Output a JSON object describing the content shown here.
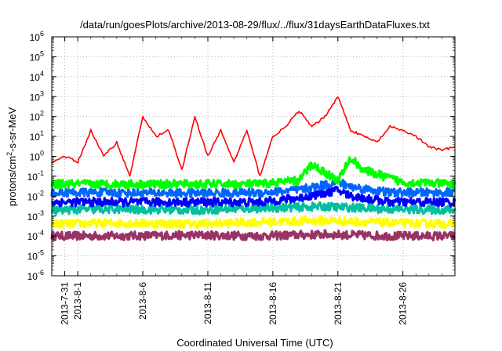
{
  "chart_data": {
    "type": "line",
    "title": "/data/run/goesPlots/archive/2013-08-29/flux/../flux/31daysEarthDataFluxes.txt",
    "xlabel": "Coordinated Universal Time (UTC)",
    "ylabel": "protons/cm²-s-sr-MeV",
    "ylabel_parts": {
      "pre": "protons/cm",
      "sup": "2",
      "post": "-s-sr-MeV"
    },
    "x_range": [
      "2013-07-30",
      "2013-08-30"
    ],
    "x_ticks": [
      "2013-7-31",
      "2013-8-1",
      "2013-8-6",
      "2013-8-11",
      "2013-8-16",
      "2013-8-21",
      "2013-8-26"
    ],
    "y_scale": "log",
    "y_range": [
      1e-06,
      1000000.0
    ],
    "y_ticks": [
      {
        "base": "10",
        "exp": "-6"
      },
      {
        "base": "10",
        "exp": "-5"
      },
      {
        "base": "10",
        "exp": "-4"
      },
      {
        "base": "10",
        "exp": "-3"
      },
      {
        "base": "10",
        "exp": "-2"
      },
      {
        "base": "10",
        "exp": "-1"
      },
      {
        "base": "10",
        "exp": "0"
      },
      {
        "base": "10",
        "exp": "1"
      },
      {
        "base": "10",
        "exp": "2"
      },
      {
        "base": "10",
        "exp": "3"
      },
      {
        "base": "10",
        "exp": "4"
      },
      {
        "base": "10",
        "exp": "5"
      },
      {
        "base": "10",
        "exp": "6"
      }
    ],
    "grid": true,
    "series": [
      {
        "color": "#993366",
        "x": [
          "2013-07-30",
          "2013-08-04",
          "2013-08-10",
          "2013-08-15",
          "2013-08-20",
          "2013-08-25",
          "2013-08-30"
        ],
        "y": [
          0.0001,
          0.0001,
          0.00011,
          0.0001,
          0.00012,
          0.0001,
          0.0001
        ]
      },
      {
        "color": "#ffff00",
        "x": [
          "2013-07-30",
          "2013-08-04",
          "2013-08-10",
          "2013-08-15",
          "2013-08-20",
          "2013-08-25",
          "2013-08-30"
        ],
        "y": [
          0.0004,
          0.00045,
          0.0004,
          0.0005,
          0.0006,
          0.00045,
          0.0004
        ]
      },
      {
        "color": "#00c0a0",
        "x": [
          "2013-07-30",
          "2013-08-04",
          "2013-08-10",
          "2013-08-15",
          "2013-08-20",
          "2013-08-25",
          "2013-08-30"
        ],
        "y": [
          0.002,
          0.0022,
          0.002,
          0.0025,
          0.003,
          0.0022,
          0.002
        ]
      },
      {
        "color": "#0000ff",
        "x": [
          "2013-07-30",
          "2013-08-04",
          "2013-08-10",
          "2013-08-15",
          "2013-08-18",
          "2013-08-21",
          "2013-08-22",
          "2013-08-25",
          "2013-08-30"
        ],
        "y": [
          0.005,
          0.005,
          0.005,
          0.005,
          0.008,
          0.02,
          0.01,
          0.005,
          0.005
        ]
      },
      {
        "color": "#0066ff",
        "x": [
          "2013-07-30",
          "2013-08-04",
          "2013-08-10",
          "2013-08-15",
          "2013-08-18",
          "2013-08-21",
          "2013-08-22",
          "2013-08-25",
          "2013-08-30"
        ],
        "y": [
          0.015,
          0.015,
          0.014,
          0.015,
          0.02,
          0.05,
          0.03,
          0.015,
          0.015
        ]
      },
      {
        "color": "#00ff00",
        "x": [
          "2013-07-30",
          "2013-08-04",
          "2013-08-10",
          "2013-08-15",
          "2013-08-18",
          "2013-08-19",
          "2013-08-21",
          "2013-08-22",
          "2013-08-23",
          "2013-08-26",
          "2013-08-30"
        ],
        "y": [
          0.04,
          0.04,
          0.04,
          0.04,
          0.06,
          0.4,
          0.06,
          0.8,
          0.2,
          0.05,
          0.04
        ]
      },
      {
        "color": "#ff0000",
        "x": [
          "2013-07-30",
          "2013-07-31",
          "2013-08-01",
          "2013-08-02",
          "2013-08-03",
          "2013-08-04",
          "2013-08-05",
          "2013-08-06",
          "2013-08-07",
          "2013-08-08",
          "2013-08-09",
          "2013-08-10",
          "2013-08-11",
          "2013-08-12",
          "2013-08-13",
          "2013-08-14",
          "2013-08-15",
          "2013-08-16",
          "2013-08-17",
          "2013-08-18",
          "2013-08-19",
          "2013-08-20",
          "2013-08-21",
          "2013-08-22",
          "2013-08-23",
          "2013-08-24",
          "2013-08-25",
          "2013-08-26",
          "2013-08-27",
          "2013-08-28",
          "2013-08-29",
          "2013-08-30"
        ],
        "y": [
          0.5,
          1.0,
          0.5,
          20,
          1.0,
          5,
          0.1,
          100,
          10,
          20,
          0.2,
          100,
          1.0,
          20,
          0.5,
          20,
          0.1,
          10,
          30,
          200,
          30,
          100,
          1000,
          20,
          10,
          5,
          30,
          20,
          10,
          3,
          2,
          3
        ]
      }
    ]
  }
}
